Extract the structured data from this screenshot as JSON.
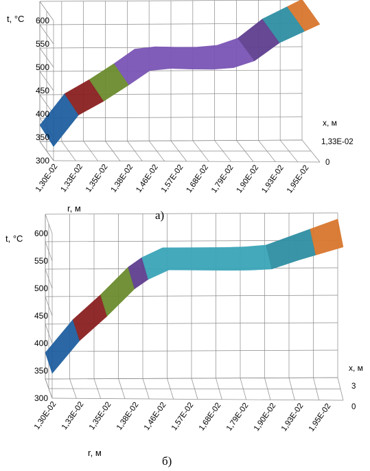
{
  "chart_data": [
    {
      "type": "area",
      "panel_label": "а)",
      "zlabel": "t, °C",
      "xlabel": "r, м",
      "depth_label": "x, м",
      "zticks": [
        "600",
        "550",
        "500",
        "450",
        "400",
        "350",
        "300"
      ],
      "zlim": [
        300,
        600
      ],
      "categories": [
        "1,30E-02",
        "1,33E-02",
        "1,35E-02",
        "1,38E-02",
        "1,46E-02",
        "1,57E-02",
        "1,68E-02",
        "1,79E-02",
        "1,90E-02",
        "1,93E-02",
        "1,95E-02"
      ],
      "depth_ticks": [
        "1,33E-02",
        "0"
      ],
      "series": [
        {
          "values": [
            330,
            398,
            428,
            463,
            500,
            498,
            497,
            498,
            516,
            555,
            580
          ]
        },
        {
          "values": [
            335,
            402,
            432,
            466,
            503,
            501,
            500,
            501,
            519,
            560,
            586
          ]
        }
      ],
      "bands": [
        {
          "from": 0,
          "to": 1,
          "color": "#1f5fa0"
        },
        {
          "from": 1,
          "to": 2,
          "color": "#8b2020"
        },
        {
          "from": 2,
          "to": 3,
          "color": "#6b8c2e"
        },
        {
          "from": 3,
          "to": 8,
          "color": "#7a55b5"
        },
        {
          "from": 8,
          "to": 9,
          "color": "#5e3f8f"
        },
        {
          "from": 9,
          "to": 10,
          "color": "#2f8fa3"
        },
        {
          "from": 10,
          "to": 10.6,
          "color": "#d9772e"
        }
      ]
    },
    {
      "type": "area",
      "panel_label": "б)",
      "zlabel": "t, °C",
      "xlabel": "r, м",
      "depth_label": "x, м",
      "zticks": [
        "600",
        "550",
        "500",
        "450",
        "400",
        "350",
        "300"
      ],
      "zlim": [
        300,
        600
      ],
      "categories": [
        "1,30E-02",
        "1,33E-02",
        "1,35E-02",
        "1,38E-02",
        "1,46E-02",
        "1,57E-02",
        "1,68E-02",
        "1,79E-02",
        "1,90E-02",
        "1,93E-02",
        "1,95E-02"
      ],
      "depth_ticks": [
        "3",
        "0"
      ],
      "series": [
        {
          "values": [
            345,
            405,
            450,
            500,
            535,
            535,
            535,
            535,
            538,
            555,
            570
          ]
        },
        {
          "values": [
            348,
            408,
            453,
            503,
            538,
            538,
            538,
            538,
            542,
            560,
            578
          ]
        }
      ],
      "bands": [
        {
          "from": 0,
          "to": 1,
          "color": "#1f5fa0"
        },
        {
          "from": 1,
          "to": 2,
          "color": "#8b2020"
        },
        {
          "from": 2,
          "to": 3,
          "color": "#6b8c2e"
        },
        {
          "from": 3,
          "to": 3.5,
          "color": "#5e3f8f"
        },
        {
          "from": 3.5,
          "to": 8,
          "color": "#3aa5b8"
        },
        {
          "from": 8,
          "to": 9,
          "color": "#2f8fa3"
        },
        {
          "from": 9,
          "to": 9.6,
          "color": "#2f8fa3"
        },
        {
          "from": 9.6,
          "to": 10.6,
          "color": "#d9772e"
        }
      ]
    }
  ]
}
